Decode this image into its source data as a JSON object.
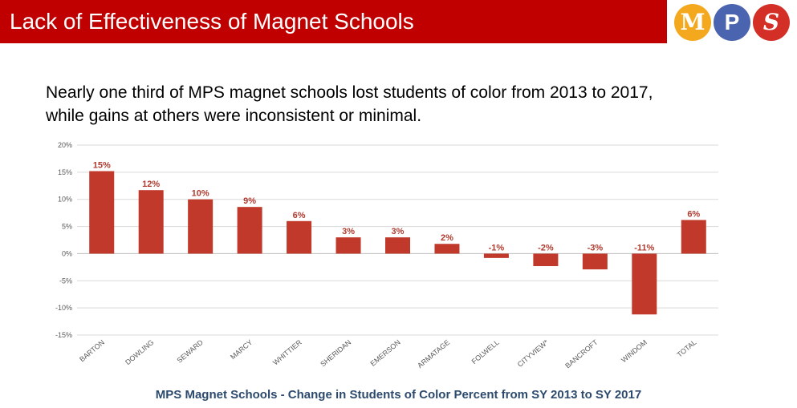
{
  "header": {
    "title": "Lack of Effectiveness of Magnet Schools",
    "logo_letters": [
      "M",
      "P",
      "S"
    ]
  },
  "subtitle_lines": [
    "Nearly one third of MPS magnet schools lost students of color from 2013 to 2017,",
    "while gains at others were inconsistent or minimal."
  ],
  "caption": "MPS Magnet Schools - Change in Students of Color Percent from SY 2013 to SY 2017",
  "colors": {
    "header_bg": "#c00000",
    "bar": "#c0392b",
    "data_label": "#b03a2e",
    "caption": "#2c4a6e",
    "logo_m": "#f4a81e",
    "logo_p": "#4a64b0",
    "logo_s": "#d32f27"
  },
  "chart_data": {
    "type": "bar",
    "title": "",
    "xlabel": "",
    "ylabel": "",
    "categories": [
      "BARTON",
      "DOWLING",
      "SEWARD",
      "MARCY",
      "WHITTIER",
      "SHERIDAN",
      "EMERSON",
      "ARMATAGE",
      "FOLWELL",
      "CITYVIEW*",
      "BANCROFT",
      "WINDOM",
      "TOTAL"
    ],
    "values": [
      15.2,
      11.7,
      10.0,
      8.6,
      6.0,
      3.0,
      3.0,
      1.8,
      -0.8,
      -2.3,
      -2.9,
      -11.2,
      6.2
    ],
    "data_labels": [
      "15%",
      "12%",
      "10%",
      "9%",
      "6%",
      "3%",
      "3%",
      "2%",
      "-1%",
      "-2%",
      "-3%",
      "-11%",
      "6%"
    ],
    "ylim": [
      -15,
      20
    ],
    "yticks": [
      20,
      15,
      10,
      5,
      0,
      -5,
      -10,
      -15
    ],
    "ytick_labels": [
      "20%",
      "15%",
      "10%",
      "5%",
      "0%",
      "-5%",
      "-10%",
      "-15%"
    ],
    "grid": true,
    "legend": "none"
  }
}
